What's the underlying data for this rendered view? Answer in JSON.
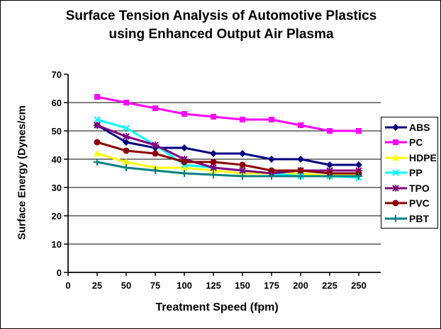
{
  "header": {
    "title_line1": "Surface Tension Analysis of Automotive Plastics",
    "title_line2": "using Enhanced Output Air Plasma"
  },
  "chart_data": {
    "type": "line",
    "title": "Surface Tension Analysis of Automotive Plastics using Enhanced Output Air Plasma",
    "xlabel": "Treatment Speed (fpm)",
    "ylabel": "Surface Energy (Dynes/cm",
    "x": [
      25,
      50,
      75,
      100,
      125,
      150,
      175,
      200,
      225,
      250
    ],
    "xticks": [
      0,
      25,
      50,
      75,
      100,
      125,
      150,
      175,
      200,
      225,
      250
    ],
    "yticks": [
      0,
      10,
      20,
      30,
      40,
      50,
      60,
      70
    ],
    "ylim": [
      0,
      70
    ],
    "grid": "horizontal",
    "legend_position": "right",
    "series": [
      {
        "name": "ABS",
        "color": "#000080",
        "marker": "diamond",
        "values": [
          52,
          46,
          44,
          44,
          42,
          42,
          40,
          40,
          38,
          38
        ]
      },
      {
        "name": "PC",
        "color": "#FF00FF",
        "marker": "square",
        "values": [
          62,
          60,
          58,
          56,
          55,
          54,
          54,
          52,
          50,
          50
        ]
      },
      {
        "name": "HDPE",
        "color": "#FFFF00",
        "marker": "triangle",
        "values": [
          42,
          39,
          37,
          37,
          36,
          35,
          35,
          35,
          34,
          35
        ]
      },
      {
        "name": "PP",
        "color": "#00FFFF",
        "marker": "x",
        "values": [
          54,
          51,
          45,
          38,
          37,
          36,
          35,
          34,
          34,
          33.5
        ]
      },
      {
        "name": "TPO",
        "color": "#800080",
        "marker": "star",
        "values": [
          52,
          48,
          45,
          40,
          37,
          36,
          35,
          36,
          36,
          36
        ]
      },
      {
        "name": "PVC",
        "color": "#8B0000",
        "marker": "circle",
        "values": [
          46,
          43,
          42,
          39,
          39,
          38,
          36,
          36,
          35,
          35
        ]
      },
      {
        "name": "PBT",
        "color": "#008080",
        "marker": "plus",
        "values": [
          39,
          37,
          36,
          35,
          34.5,
          34,
          34,
          34,
          34,
          34
        ]
      }
    ]
  }
}
